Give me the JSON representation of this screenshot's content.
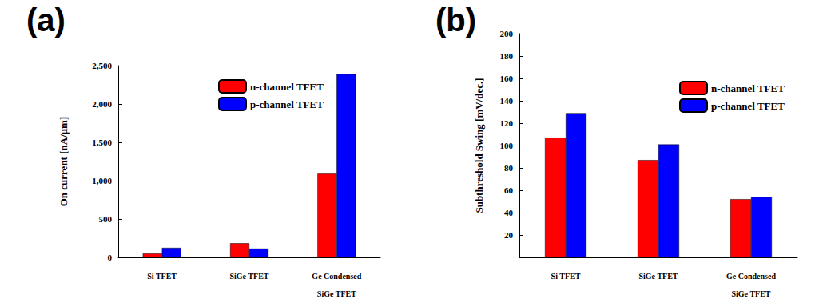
{
  "chart_data": [
    {
      "type": "bar",
      "title": "(a)",
      "categories": [
        "Si TFET",
        "SiGe TFET",
        "Ge Condensed\nSiGe TFET"
      ],
      "y_label": "On current [nA/μm]",
      "series": [
        {
          "name": "n-channel TFET",
          "color": "#ff0000",
          "values": [
            50,
            185,
            1090
          ]
        },
        {
          "name": "p-channel TFET",
          "color": "#0000ff",
          "values": [
            125,
            115,
            2390
          ]
        }
      ],
      "ylim": [
        0,
        2500
      ],
      "yticks": [
        0,
        500,
        {
          "value": 1000,
          "label": "1,000"
        },
        {
          "value": 1500,
          "label": "1,500"
        },
        {
          "value": 2000,
          "label": "2,000"
        },
        {
          "value": 2500,
          "label": "2,500"
        }
      ],
      "grid": false,
      "legend": "upper right"
    },
    {
      "type": "bar",
      "title": "(b)",
      "categories": [
        "Si TFET",
        "SiGe TFET",
        "Ge Condensed\nSiGe TFET"
      ],
      "y_label": "Subthreshold Swing [mV/dec.]",
      "series": [
        {
          "name": "n-channel TFET",
          "color": "#ff0000",
          "values": [
            107,
            87,
            52
          ]
        },
        {
          "name": "p-channel TFET",
          "color": "#0000ff",
          "values": [
            129,
            101,
            54
          ]
        }
      ],
      "ylim": [
        0,
        200
      ],
      "yticks": [
        20,
        40,
        60,
        80,
        100,
        120,
        140,
        160,
        180,
        200
      ],
      "grid": false,
      "legend": "upper right"
    }
  ]
}
